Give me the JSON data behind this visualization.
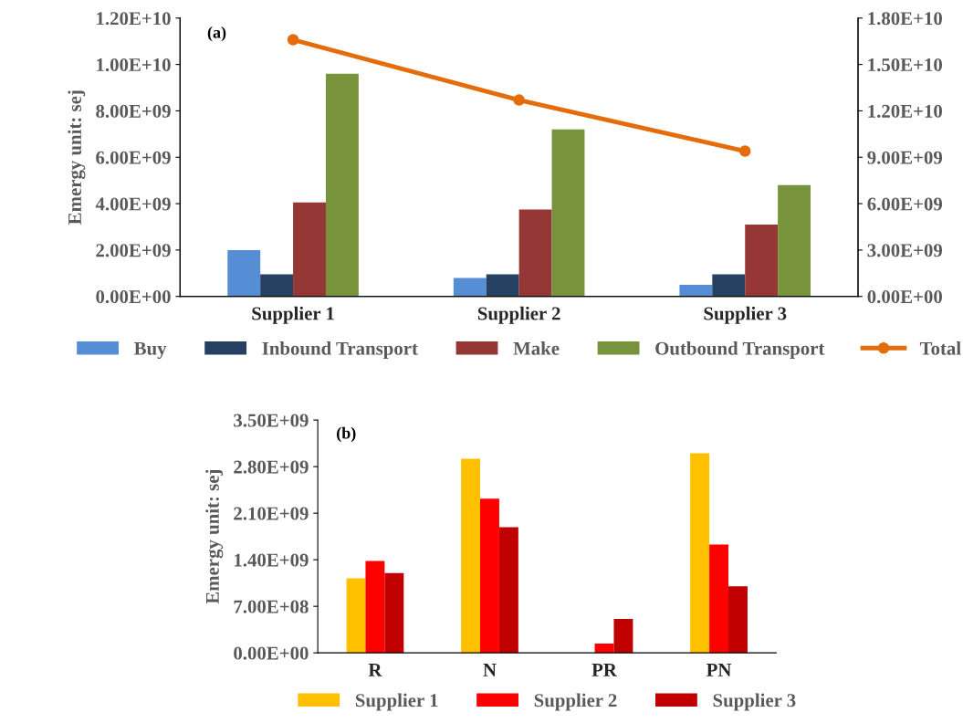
{
  "chart_data": [
    {
      "type": "bar",
      "ylabel": "Emergy unit: sej",
      "annotations": [
        "(a)"
      ],
      "categories": [
        "Supplier 1",
        "Supplier 2",
        "Supplier 3"
      ],
      "series": [
        {
          "name": "Buy",
          "color": "#558ed5",
          "values": [
            2000000000.0,
            800000000.0,
            500000000.0
          ]
        },
        {
          "name": "Inbound Transport",
          "color": "#254061",
          "values": [
            950000000.0,
            950000000.0,
            950000000.0
          ]
        },
        {
          "name": "Make",
          "color": "#953735",
          "values": [
            4050000000.0,
            3750000000.0,
            3100000000.0
          ]
        },
        {
          "name": "Outbound Transport",
          "color": "#77933c",
          "values": [
            9600000000.0,
            7200000000.0,
            4800000000.0
          ]
        },
        {
          "name": "Total",
          "type": "line",
          "axis": "y2",
          "marker": "circle",
          "color": "#e46c0a",
          "values": [
            16600000000.0,
            12700000000.0,
            9400000000.0
          ]
        }
      ],
      "ylim": [
        0,
        12000000000.0
      ],
      "yticks": [
        {
          "value": 0,
          "label": "0.00E+00"
        },
        {
          "value": 2000000000.0,
          "label": "2.00E+09"
        },
        {
          "value": 4000000000.0,
          "label": "4.00E+09"
        },
        {
          "value": 6000000000.0,
          "label": "6.00E+09"
        },
        {
          "value": 8000000000.0,
          "label": "8.00E+09"
        },
        {
          "value": 10000000000.0,
          "label": "1.00E+10"
        },
        {
          "value": 12000000000.0,
          "label": "1.20E+10"
        }
      ],
      "y2lim": [
        0,
        18000000000.0
      ],
      "y2ticks": [
        {
          "value": 0,
          "label": "0.00E+00"
        },
        {
          "value": 3000000000.0,
          "label": "3.00E+09"
        },
        {
          "value": 6000000000.0,
          "label": "6.00E+09"
        },
        {
          "value": 9000000000.0,
          "label": "9.00E+09"
        },
        {
          "value": 12000000000.0,
          "label": "1.20E+10"
        },
        {
          "value": 15000000000.0,
          "label": "1.50E+10"
        },
        {
          "value": 18000000000.0,
          "label": "1.80E+10"
        }
      ],
      "grid": false,
      "legend": "bottom"
    },
    {
      "type": "bar",
      "ylabel": "Emergy unit: sej",
      "annotations": [
        "(b)"
      ],
      "categories": [
        "R",
        "N",
        "PR",
        "PN"
      ],
      "series": [
        {
          "name": "Supplier 1",
          "color": "#ffc000",
          "values": [
            1120000000.0,
            2920000000.0,
            0,
            3000000000.0
          ]
        },
        {
          "name": "Supplier 2",
          "color": "#ff0000",
          "values": [
            1380000000.0,
            2320000000.0,
            140000000.0,
            1630000000.0
          ]
        },
        {
          "name": "Supplier 3",
          "color": "#c00000",
          "values": [
            1200000000.0,
            1890000000.0,
            510000000.0,
            1000000000.0
          ]
        }
      ],
      "ylim": [
        0,
        3500000000.0
      ],
      "yticks": [
        {
          "value": 0,
          "label": "0.00E+00"
        },
        {
          "value": 700000000.0,
          "label": "7.00E+08"
        },
        {
          "value": 1400000000.0,
          "label": "1.40E+09"
        },
        {
          "value": 2100000000.0,
          "label": "2.10E+09"
        },
        {
          "value": 2800000000.0,
          "label": "2.80E+09"
        },
        {
          "value": 3500000000.0,
          "label": "3.50E+09"
        }
      ],
      "grid": false,
      "legend": "bottom"
    }
  ]
}
